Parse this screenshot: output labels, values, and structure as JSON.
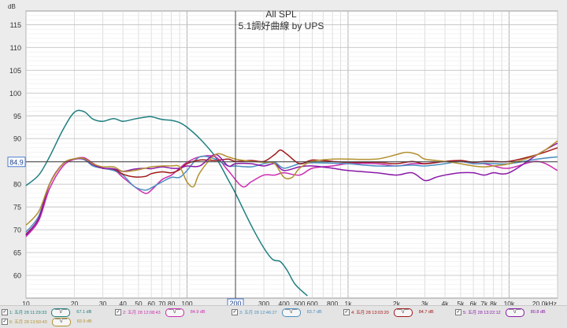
{
  "chart_data": {
    "type": "line",
    "title": "All SPL",
    "subtitle": "5.1調好曲線 by UPS",
    "ylabel": "dB",
    "xlabel": "",
    "x_scale": "log",
    "xlim": [
      10,
      20000
    ],
    "ylim": [
      55,
      118
    ],
    "y_ticks": [
      "60",
      "65",
      "70",
      "75",
      "80",
      "85",
      "90",
      "95",
      "100",
      "105",
      "110",
      "115"
    ],
    "y_tick_values": [
      60,
      65,
      70,
      75,
      80,
      85,
      90,
      95,
      100,
      105,
      110,
      115
    ],
    "x_ticks": [
      "10",
      "20",
      "30",
      "40",
      "50",
      "60",
      "70",
      "80",
      "100",
      "200",
      "300",
      "400",
      "500",
      "600",
      "800",
      "1k",
      "2k",
      "3k",
      "4k",
      "5k",
      "6k",
      "7k",
      "8k",
      "10k",
      "20.0kHz"
    ],
    "x_tick_values": [
      10,
      20,
      30,
      40,
      50,
      60,
      70,
      80,
      100,
      200,
      300,
      400,
      500,
      600,
      800,
      1000,
      2000,
      3000,
      4000,
      5000,
      6000,
      7000,
      8000,
      10000,
      20000
    ],
    "reference_level": "84.9",
    "reference_value": 84.9,
    "cursor_label": "200",
    "cursor_value": 200,
    "grid": true,
    "series": [
      {
        "name": "1: 五月 28 11:29:33",
        "level": "67.1 dB",
        "color": "#1f7f80",
        "points": [
          [
            10,
            79.7
          ],
          [
            12,
            82
          ],
          [
            14,
            86
          ],
          [
            17,
            92
          ],
          [
            20,
            95.8
          ],
          [
            23,
            95.9
          ],
          [
            26,
            94.3
          ],
          [
            30,
            93.8
          ],
          [
            35,
            94.4
          ],
          [
            40,
            93.8
          ],
          [
            47,
            94.3
          ],
          [
            55,
            94.7
          ],
          [
            60,
            94.8
          ],
          [
            70,
            94.2
          ],
          [
            80,
            94
          ],
          [
            90,
            93.5
          ],
          [
            100,
            92.5
          ],
          [
            120,
            90
          ],
          [
            150,
            86
          ],
          [
            180,
            81
          ],
          [
            200,
            78
          ],
          [
            250,
            71
          ],
          [
            300,
            66
          ],
          [
            340,
            63.5
          ],
          [
            380,
            63
          ],
          [
            420,
            61
          ],
          [
            470,
            58
          ],
          [
            560,
            55.5
          ]
        ]
      },
      {
        "name": "2: 五月 28 12:08:43",
        "level": "84.9 dB",
        "color": "#cc2db0",
        "points": [
          [
            10,
            68.5
          ],
          [
            12,
            72
          ],
          [
            14,
            79
          ],
          [
            17,
            84
          ],
          [
            20,
            85.5
          ],
          [
            23,
            85.8
          ],
          [
            26,
            84.6
          ],
          [
            30,
            83.5
          ],
          [
            35,
            83.2
          ],
          [
            40,
            81.5
          ],
          [
            47,
            79.5
          ],
          [
            55,
            78
          ],
          [
            60,
            78.7
          ],
          [
            70,
            81
          ],
          [
            80,
            82
          ],
          [
            90,
            83.5
          ],
          [
            100,
            84.8
          ],
          [
            120,
            86
          ],
          [
            150,
            86
          ],
          [
            180,
            83
          ],
          [
            220,
            79.5
          ],
          [
            250,
            80.5
          ],
          [
            300,
            82
          ],
          [
            350,
            82
          ],
          [
            400,
            82.5
          ],
          [
            500,
            82
          ],
          [
            600,
            83.5
          ],
          [
            800,
            84
          ],
          [
            1000,
            84.5
          ],
          [
            1500,
            84.5
          ],
          [
            2000,
            84
          ],
          [
            2500,
            84.5
          ],
          [
            3000,
            84.5
          ],
          [
            4000,
            85
          ],
          [
            5000,
            85
          ],
          [
            6000,
            84.5
          ],
          [
            7000,
            84.5
          ],
          [
            8000,
            84
          ],
          [
            10000,
            83.5
          ],
          [
            15000,
            85
          ],
          [
            20000,
            83
          ]
        ]
      },
      {
        "name": "3: 五月 28 12:46:27",
        "level": "83.7 dB",
        "color": "#4a8fc0",
        "points": [
          [
            10,
            69.5
          ],
          [
            12,
            73
          ],
          [
            14,
            80
          ],
          [
            17,
            84.5
          ],
          [
            20,
            85.5
          ],
          [
            23,
            85.4
          ],
          [
            26,
            84
          ],
          [
            30,
            83.5
          ],
          [
            35,
            83
          ],
          [
            40,
            82
          ],
          [
            47,
            79.5
          ],
          [
            55,
            78.7
          ],
          [
            60,
            79.2
          ],
          [
            70,
            80.5
          ],
          [
            80,
            81.5
          ],
          [
            90,
            81.5
          ],
          [
            100,
            83
          ],
          [
            120,
            86
          ],
          [
            150,
            85.5
          ],
          [
            180,
            84
          ],
          [
            200,
            84
          ],
          [
            250,
            83.8
          ],
          [
            300,
            84.5
          ],
          [
            350,
            84.8
          ],
          [
            400,
            83.5
          ],
          [
            500,
            84.5
          ],
          [
            600,
            84.7
          ],
          [
            800,
            84.6
          ],
          [
            1000,
            84.5
          ],
          [
            1500,
            84
          ],
          [
            2000,
            84
          ],
          [
            2500,
            84.2
          ],
          [
            3000,
            84
          ],
          [
            4000,
            84.5
          ],
          [
            5000,
            85
          ],
          [
            6000,
            84.5
          ],
          [
            7000,
            84.6
          ],
          [
            8000,
            84.5
          ],
          [
            10000,
            84.5
          ],
          [
            15000,
            85.5
          ],
          [
            20000,
            86
          ]
        ]
      },
      {
        "name": "4: 五月 28 13:03:20",
        "level": "84.7 dB",
        "color": "#a01818",
        "points": [
          [
            10,
            69
          ],
          [
            12,
            72.5
          ],
          [
            14,
            80
          ],
          [
            17,
            84.5
          ],
          [
            20,
            85.5
          ],
          [
            23,
            85.6
          ],
          [
            26,
            84.5
          ],
          [
            30,
            83.5
          ],
          [
            35,
            83.3
          ],
          [
            40,
            82.2
          ],
          [
            47,
            81.6
          ],
          [
            55,
            81.7
          ],
          [
            60,
            82.3
          ],
          [
            70,
            82.7
          ],
          [
            80,
            82.5
          ],
          [
            90,
            83.2
          ],
          [
            100,
            84.5
          ],
          [
            120,
            85.3
          ],
          [
            150,
            85.2
          ],
          [
            180,
            85.5
          ],
          [
            200,
            85
          ],
          [
            250,
            85.2
          ],
          [
            300,
            85
          ],
          [
            350,
            86.5
          ],
          [
            380,
            87.5
          ],
          [
            420,
            86.5
          ],
          [
            500,
            84.5
          ],
          [
            600,
            85.3
          ],
          [
            800,
            85
          ],
          [
            1000,
            84.8
          ],
          [
            1500,
            84.8
          ],
          [
            2000,
            84.5
          ],
          [
            2500,
            85
          ],
          [
            3000,
            84.5
          ],
          [
            4000,
            85
          ],
          [
            5000,
            85.2
          ],
          [
            6000,
            84.8
          ],
          [
            7000,
            85
          ],
          [
            8000,
            85
          ],
          [
            10000,
            85
          ],
          [
            15000,
            86.5
          ],
          [
            20000,
            88
          ]
        ]
      },
      {
        "name": "5: 五月 28 13:22:12",
        "level": "80.8 dB",
        "color": "#8a18a8",
        "points": [
          [
            10,
            68.8
          ],
          [
            12,
            72.5
          ],
          [
            14,
            80
          ],
          [
            17,
            84.5
          ],
          [
            20,
            85.5
          ],
          [
            23,
            85.5
          ],
          [
            26,
            84.3
          ],
          [
            30,
            83.5
          ],
          [
            35,
            83.4
          ],
          [
            40,
            82.8
          ],
          [
            47,
            83.3
          ],
          [
            55,
            83.5
          ],
          [
            60,
            83.4
          ],
          [
            70,
            83.8
          ],
          [
            80,
            83.5
          ],
          [
            90,
            83.5
          ],
          [
            100,
            84
          ],
          [
            120,
            84
          ],
          [
            150,
            86.5
          ],
          [
            180,
            84
          ],
          [
            200,
            84.5
          ],
          [
            250,
            84.5
          ],
          [
            300,
            84
          ],
          [
            350,
            84.5
          ],
          [
            400,
            83
          ],
          [
            500,
            83.8
          ],
          [
            600,
            84
          ],
          [
            800,
            83.5
          ],
          [
            1000,
            83
          ],
          [
            1500,
            82.5
          ],
          [
            2000,
            82
          ],
          [
            2500,
            82.5
          ],
          [
            3000,
            80.8
          ],
          [
            3500,
            81.5
          ],
          [
            4000,
            82
          ],
          [
            5000,
            82.5
          ],
          [
            6000,
            82.5
          ],
          [
            7000,
            82
          ],
          [
            8000,
            82.5
          ],
          [
            10000,
            82.5
          ],
          [
            15000,
            86.5
          ],
          [
            20000,
            89
          ]
        ]
      },
      {
        "name": "6: 五月 28 13:50:43",
        "level": "83.9 dB",
        "color": "#b39030",
        "points": [
          [
            10,
            71
          ],
          [
            12,
            74
          ],
          [
            14,
            80
          ],
          [
            17,
            84.5
          ],
          [
            20,
            85.6
          ],
          [
            23,
            85.6
          ],
          [
            26,
            84.5
          ],
          [
            30,
            83.8
          ],
          [
            35,
            83.8
          ],
          [
            40,
            82.8
          ],
          [
            47,
            83
          ],
          [
            55,
            83.5
          ],
          [
            60,
            83.8
          ],
          [
            70,
            84
          ],
          [
            80,
            84
          ],
          [
            90,
            83.8
          ],
          [
            100,
            80.5
          ],
          [
            110,
            79.5
          ],
          [
            120,
            82.5
          ],
          [
            150,
            86.5
          ],
          [
            180,
            86
          ],
          [
            200,
            85.5
          ],
          [
            250,
            85
          ],
          [
            300,
            84.8
          ],
          [
            350,
            84.5
          ],
          [
            400,
            81.5
          ],
          [
            450,
            81.5
          ],
          [
            500,
            83.5
          ],
          [
            600,
            85
          ],
          [
            800,
            85.5
          ],
          [
            1000,
            85.5
          ],
          [
            1500,
            85.5
          ],
          [
            2000,
            86.5
          ],
          [
            2300,
            87
          ],
          [
            2700,
            86.5
          ],
          [
            3000,
            85.5
          ],
          [
            4000,
            85
          ],
          [
            5000,
            84.5
          ],
          [
            6000,
            84
          ],
          [
            7000,
            83.8
          ],
          [
            8000,
            84
          ],
          [
            10000,
            84.5
          ],
          [
            15000,
            86.5
          ],
          [
            20000,
            89.5
          ]
        ]
      }
    ]
  }
}
